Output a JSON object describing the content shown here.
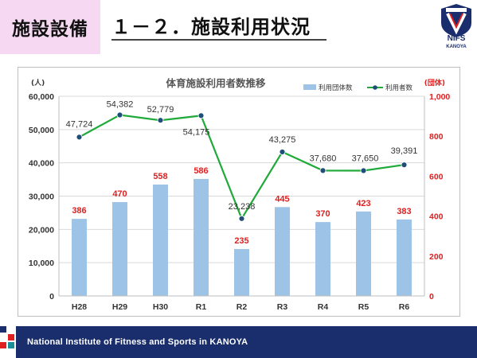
{
  "header": {
    "section_label": "施設設備",
    "title": "１－２．施設利用状況",
    "logo_text": "NIFS",
    "logo_subtext": "KANOYA",
    "logo_badge": "KANOYA"
  },
  "footer": {
    "text": "National Institute of Fitness and Sports in KANOYA"
  },
  "colors": {
    "bar": "#9dc3e6",
    "line": "#1faa3a",
    "marker": "#1f4e79",
    "bar_label": "#e02020",
    "right_axis": "#e02020",
    "footer": "#1a2e6e"
  },
  "chart_data": {
    "type": "bar+line",
    "title": "体育施設利用者数推移",
    "categories": [
      "H28",
      "H29",
      "H30",
      "R1",
      "R2",
      "R3",
      "R4",
      "R5",
      "R6"
    ],
    "series": [
      {
        "name": "利用団体数",
        "type": "bar",
        "axis": "right",
        "values": [
          386,
          470,
          558,
          586,
          235,
          445,
          370,
          423,
          383
        ],
        "labels": [
          "386",
          "470",
          "558",
          "586",
          "235",
          "445",
          "370",
          "423",
          "383"
        ]
      },
      {
        "name": "利用者数",
        "type": "line",
        "axis": "left",
        "values": [
          47724,
          54382,
          52779,
          54175,
          23238,
          43275,
          37680,
          37650,
          39391
        ],
        "labels": [
          "47,724",
          "54,382",
          "52,779",
          "54,175",
          "23,238",
          "43,275",
          "37,680",
          "37,650",
          "39,391"
        ]
      }
    ],
    "y_left": {
      "unit": "(人)",
      "min": 0,
      "max": 60000,
      "ticks": [
        0,
        10000,
        20000,
        30000,
        40000,
        50000,
        60000
      ],
      "tick_labels": [
        "0",
        "10,000",
        "20,000",
        "30,000",
        "40,000",
        "50,000",
        "60,000"
      ]
    },
    "y_right": {
      "unit": "(団体)",
      "min": 0,
      "max": 1000,
      "ticks": [
        0,
        200,
        400,
        600,
        800,
        1000
      ],
      "tick_labels": [
        "0",
        "200",
        "400",
        "600",
        "800",
        "1,000"
      ]
    },
    "grid": true,
    "legend_position": "top-right"
  }
}
